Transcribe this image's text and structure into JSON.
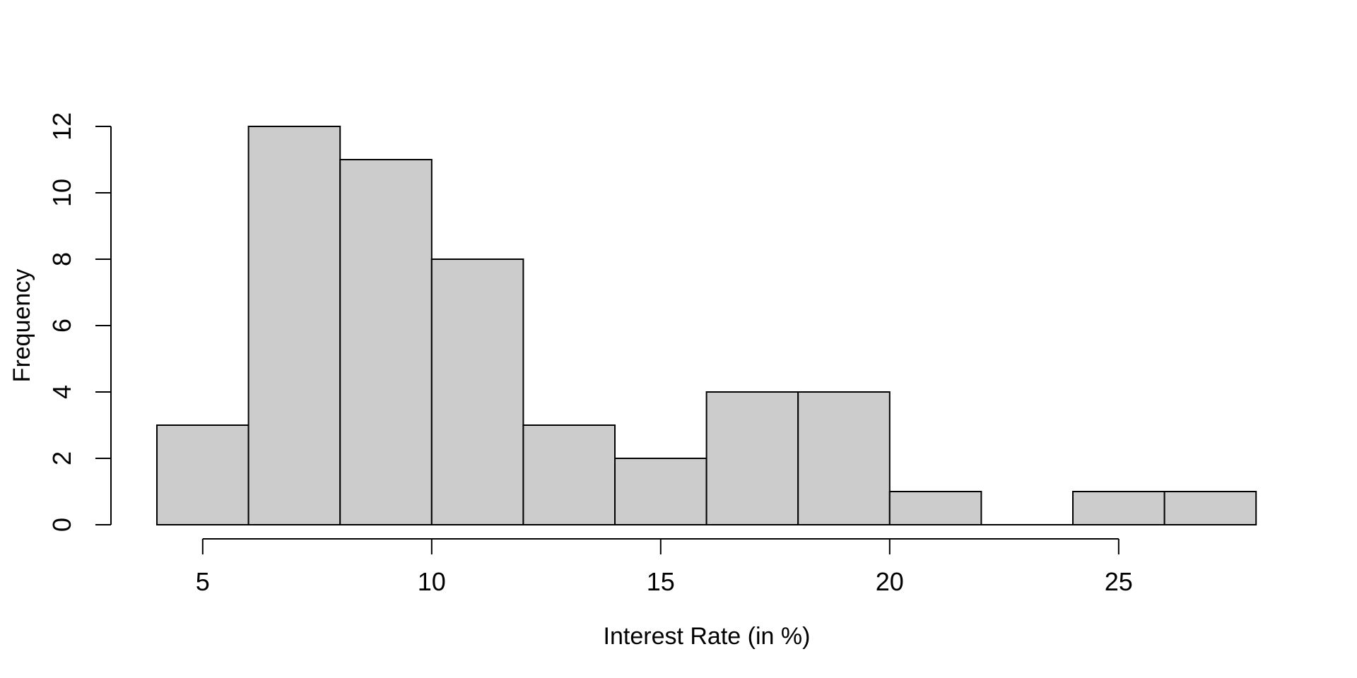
{
  "figure": {
    "background": "#ffffff",
    "foreground": "#000000"
  },
  "chart_data": {
    "type": "bar",
    "subtype": "histogram",
    "xlabel": "Interest Rate (in %)",
    "ylabel": "Frequency",
    "bin_edges": [
      4,
      6,
      8,
      10,
      12,
      14,
      16,
      18,
      20,
      22,
      24,
      26,
      28
    ],
    "counts": [
      3,
      12,
      11,
      8,
      3,
      2,
      4,
      4,
      1,
      0,
      1,
      1
    ],
    "x_ticks": [
      5,
      10,
      15,
      20,
      25
    ],
    "y_ticks": [
      0,
      2,
      4,
      6,
      8,
      10,
      12
    ],
    "xlim": [
      4,
      28
    ],
    "ylim": [
      0,
      12
    ],
    "bar_fill": "#cccccc",
    "bar_stroke": "#000000",
    "axis_color": "#000000",
    "grid": false,
    "legend": null
  }
}
